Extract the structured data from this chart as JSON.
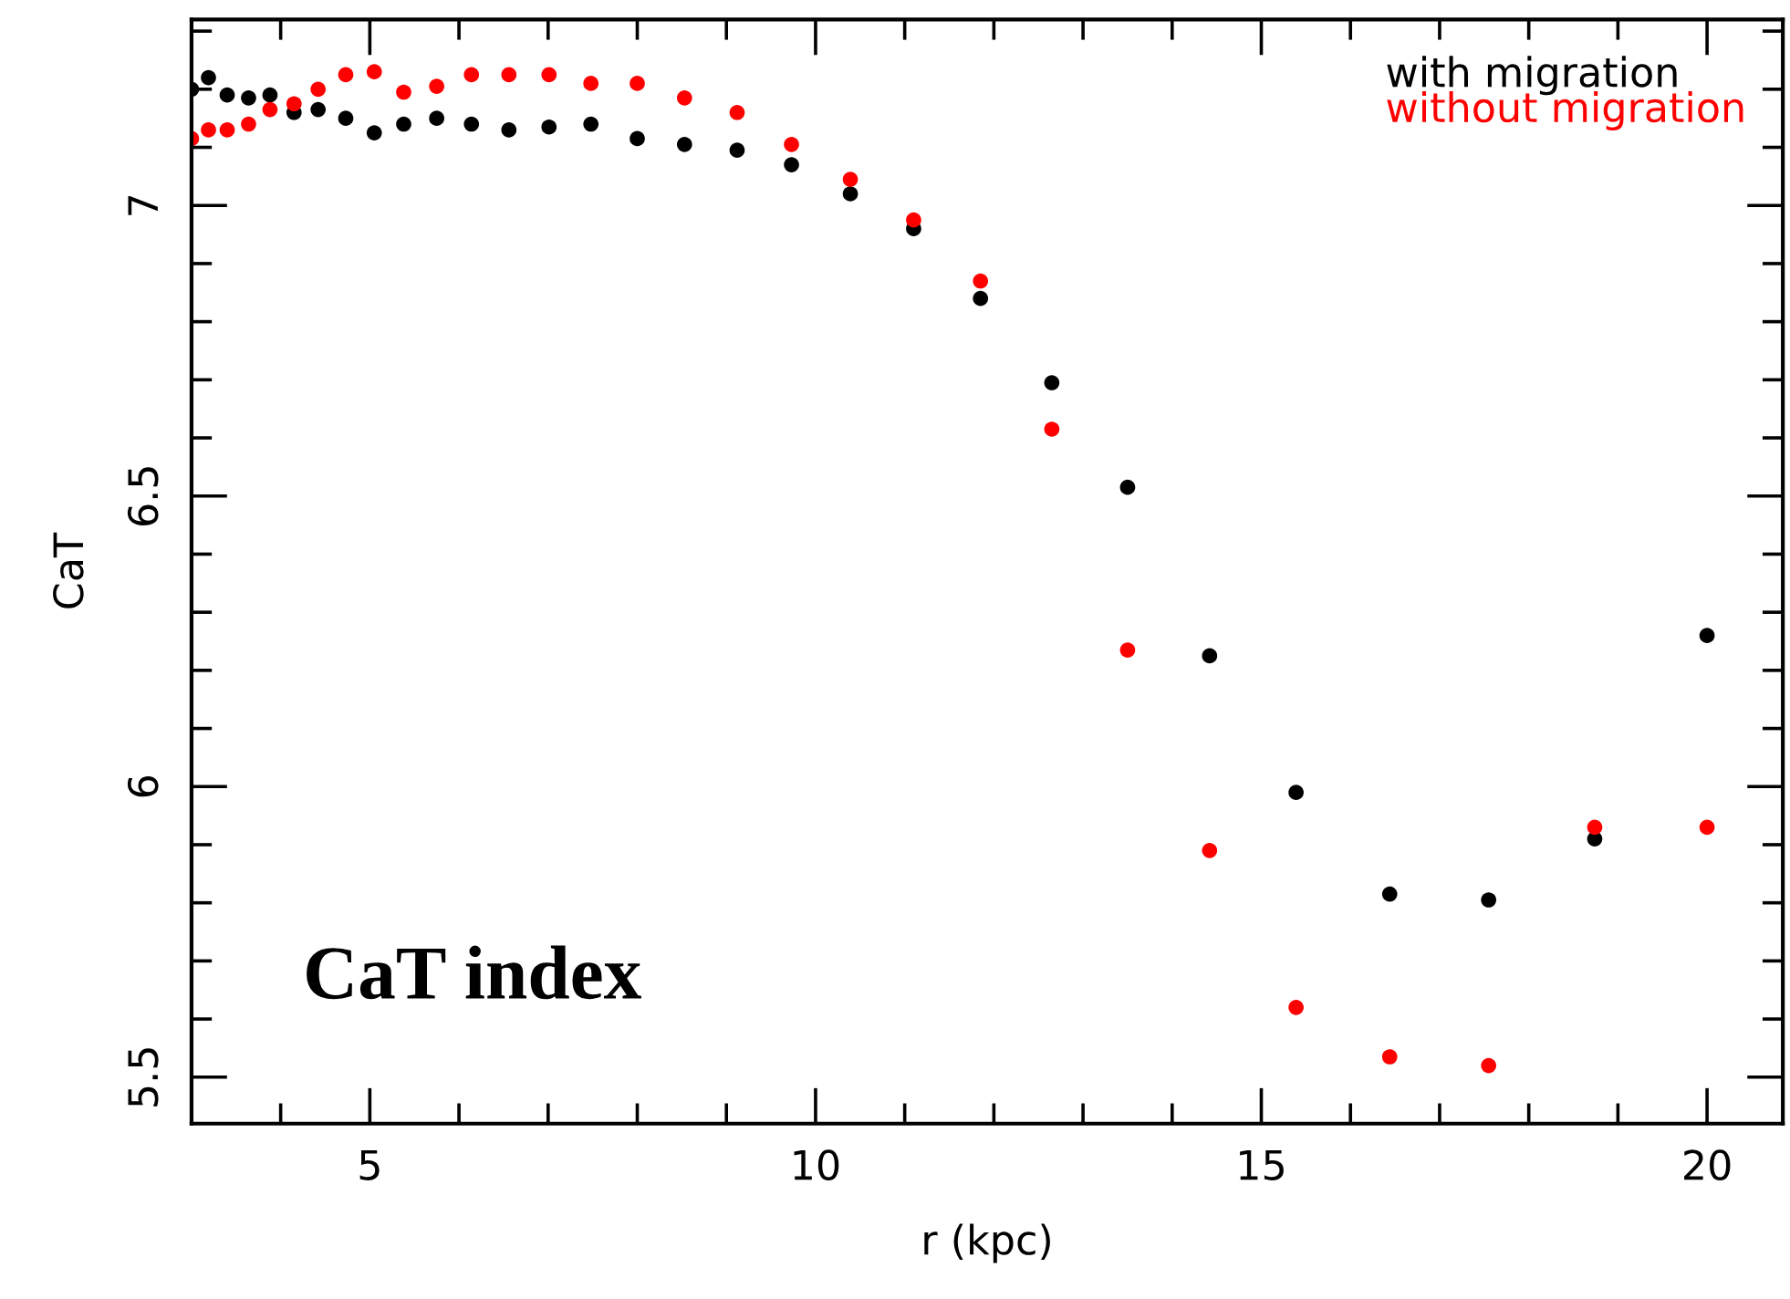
{
  "chart_data": {
    "type": "scatter",
    "xlabel": "r (kpc)",
    "ylabel": "CaT",
    "xlim": [
      3.0,
      20.85
    ],
    "ylim": [
      5.42,
      7.32
    ],
    "xticks": [
      5,
      10,
      15,
      20
    ],
    "yticks": [
      5.5,
      6,
      6.5,
      7
    ],
    "grid": false,
    "legend": "top right",
    "marker": "circle",
    "annotations": [
      "CaT index"
    ],
    "series": [
      {
        "name": "with migration",
        "color": "#000000",
        "x": [
          3.0,
          3.19,
          3.4,
          3.64,
          3.88,
          4.15,
          4.42,
          4.73,
          5.05,
          5.38,
          5.75,
          6.14,
          6.56,
          7.01,
          7.48,
          8.0,
          8.53,
          9.12,
          9.73,
          10.39,
          11.1,
          11.85,
          12.65,
          13.5,
          14.42,
          15.39,
          16.44,
          17.55,
          18.74,
          20.0
        ],
        "values": [
          7.2,
          7.22,
          7.19,
          7.185,
          7.19,
          7.16,
          7.165,
          7.15,
          7.125,
          7.14,
          7.15,
          7.14,
          7.13,
          7.135,
          7.14,
          7.115,
          7.105,
          7.095,
          7.07,
          7.02,
          6.96,
          6.84,
          6.695,
          6.515,
          6.225,
          5.99,
          5.815,
          5.805,
          5.91,
          6.26
        ]
      },
      {
        "name": "without migration",
        "color": "#ff0000",
        "x": [
          3.0,
          3.19,
          3.4,
          3.64,
          3.88,
          4.15,
          4.42,
          4.73,
          5.05,
          5.38,
          5.75,
          6.14,
          6.56,
          7.01,
          7.48,
          8.0,
          8.53,
          9.12,
          9.73,
          10.39,
          11.1,
          11.85,
          12.65,
          13.5,
          14.42,
          15.39,
          16.44,
          17.55,
          18.74,
          20.0
        ],
        "values": [
          7.115,
          7.13,
          7.13,
          7.14,
          7.165,
          7.175,
          7.2,
          7.225,
          7.23,
          7.195,
          7.205,
          7.225,
          7.225,
          7.225,
          7.21,
          7.21,
          7.185,
          7.16,
          7.105,
          7.045,
          6.975,
          6.87,
          6.615,
          6.235,
          5.89,
          5.62,
          5.535,
          5.52,
          5.93,
          5.93
        ]
      }
    ]
  }
}
